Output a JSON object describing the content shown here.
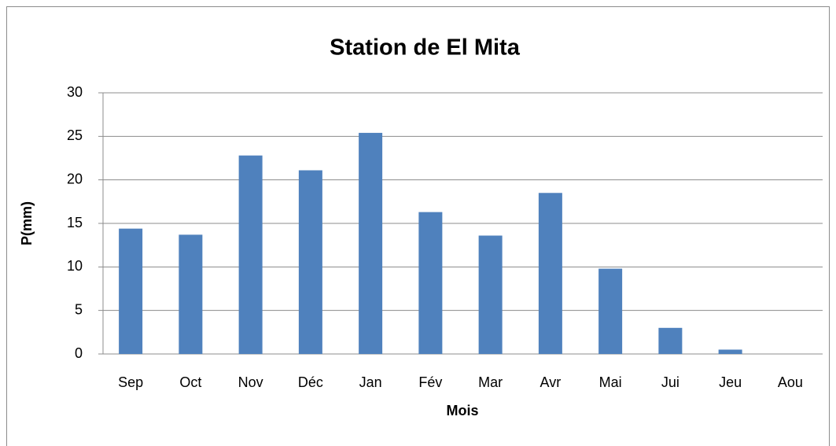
{
  "chart_data": {
    "type": "bar",
    "title": "Station de El Mita",
    "x_label": "Mois",
    "y_label": "P(mm)",
    "categories": [
      "Sep",
      "Oct",
      "Nov",
      "Déc",
      "Jan",
      "Fév",
      "Mar",
      "Avr",
      "Mai",
      "Jui",
      "Jeu",
      "Aou"
    ],
    "values": [
      14.4,
      13.7,
      22.8,
      21.1,
      25.4,
      16.3,
      13.6,
      18.5,
      9.8,
      3.0,
      0.5,
      0
    ],
    "color": "#4f81bd",
    "ylim": [
      0,
      30
    ],
    "yticks": [
      0,
      5,
      10,
      15,
      20,
      25,
      30
    ],
    "grid": true
  }
}
